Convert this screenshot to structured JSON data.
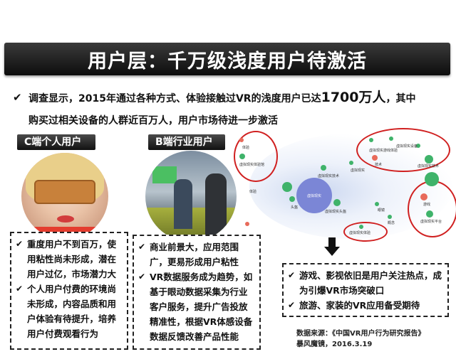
{
  "title": "用户层：千万级浅度用户待激活",
  "summary": {
    "line1_pre": "调查显示，2015年通过各种方式、体验接触过VR的浅度用户已达",
    "line1_big": "1700万人",
    "line1_post": "，其中",
    "line2": "购买过相关设备的人群近百万人，用户市场待进一步激活"
  },
  "tags": {
    "c_user": "C端个人用户",
    "b_user": "B端行业用户"
  },
  "bubble_chart": {
    "hub": "虚拟现实",
    "labels": [
      "体验",
      "虚拟现实体验馆",
      "虚拟现实技术",
      "虚拟现实设备",
      "技术",
      "虚拟现实游戏体验",
      "虚拟现实技术",
      "头盔",
      "虚拟现实",
      "体验",
      "虚拟现实头盔",
      "游戏",
      "虚拟现实平台",
      "概念",
      "虚拟现实体验",
      "眼镜"
    ]
  },
  "c_box": {
    "items": [
      "重度用户不到百万，使用粘性尚未形成，潜在用户过亿，市场潜力大",
      "个人用户付费的环境尚未形成，内容品质和用户体验有待提升，培养用户付费观看行为"
    ]
  },
  "b_box": {
    "items": [
      "商业前景大，应用范围广，更易形成用户粘性",
      "VR数据服务成为趋势，如基于眼动数据采集为行业客户服务，提升广告投放精准性，根据VR体感设备数据反馈改善产品性能"
    ]
  },
  "r_box": {
    "items": [
      "游戏、影视依旧是用户关注热点，成为引爆VR市场突破口",
      "旅游、家装的VR应用备受期待"
    ]
  },
  "source": {
    "line1": "数据来源：《中国VR用户行为研究报告》",
    "line2": "暴风魔镜，2016.3.19"
  }
}
